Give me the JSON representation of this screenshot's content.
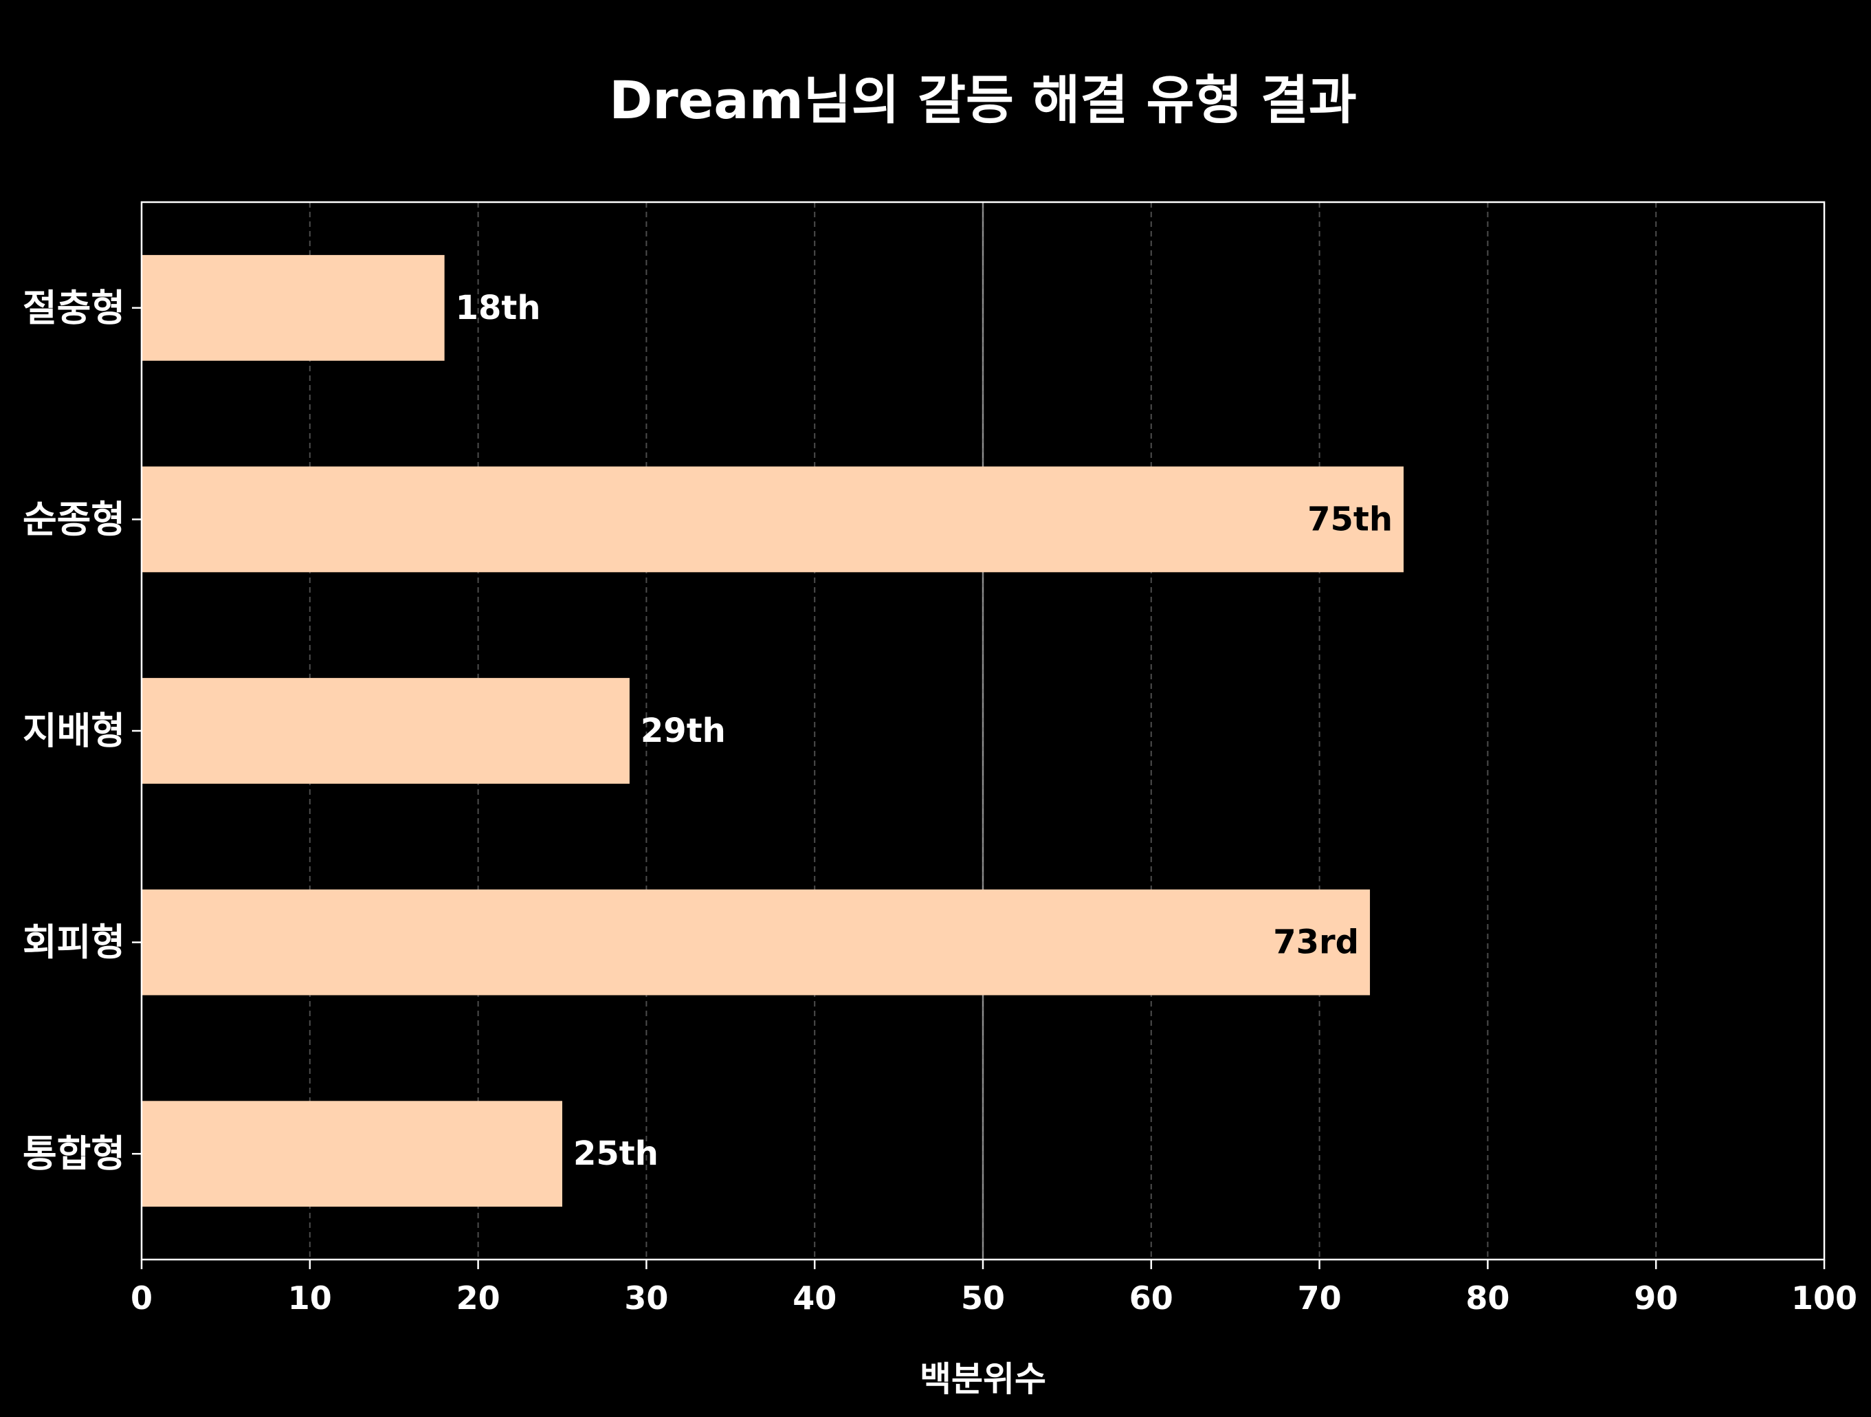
{
  "chart_data": {
    "type": "bar",
    "orientation": "horizontal",
    "title": "Dream님의 갈등 해결 유형 결과",
    "xlabel": "백분위수",
    "ylabel": "",
    "xlim": [
      0,
      100
    ],
    "xticks": [
      0,
      10,
      20,
      30,
      40,
      50,
      60,
      70,
      80,
      90,
      100
    ],
    "grid": "vertical-dashed",
    "reference_line_x": 50,
    "categories": [
      "절충형",
      "순종형",
      "지배형",
      "회피형",
      "통합형"
    ],
    "values": [
      18,
      75,
      29,
      73,
      25
    ],
    "value_labels": [
      "18th",
      "75th",
      "29th",
      "73rd",
      "25th"
    ],
    "colors": {
      "background": "#000000",
      "bar": "#FFD3B0",
      "text": "#FFFFFF",
      "inside_label": "#000000",
      "grid": "#555555",
      "axes": "#FFFFFF"
    }
  }
}
